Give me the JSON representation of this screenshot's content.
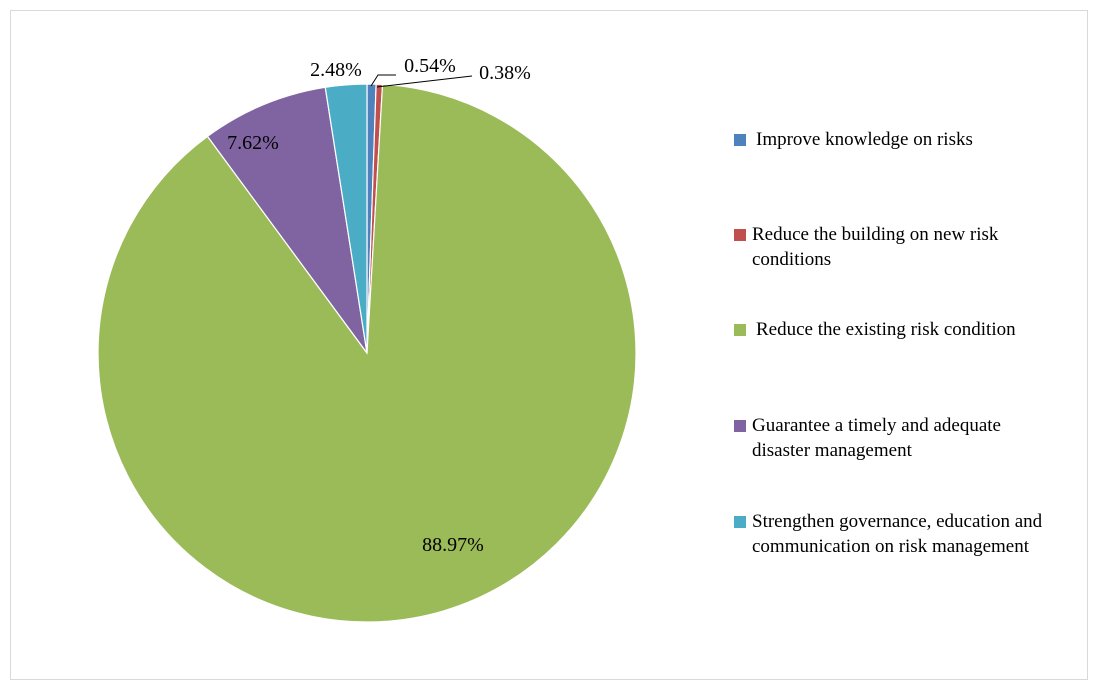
{
  "chart_data": {
    "type": "pie",
    "title": "",
    "legend_position": "right",
    "slices": [
      {
        "label": "Improve knowledge on risks",
        "value": 0.54,
        "display": "0.54%",
        "color": "#4f81bd"
      },
      {
        "label": "Reduce the building on new risk conditions",
        "value": 0.38,
        "display": "0.38%",
        "color": "#c0504d"
      },
      {
        "label": "Reduce the existing risk condition",
        "value": 88.97,
        "display": "88.97%",
        "color": "#9bbb59"
      },
      {
        "label": "Guarantee a timely and adequate disaster management",
        "value": 7.62,
        "display": "7.62%",
        "color": "#8064a2"
      },
      {
        "label": "Strengthen governance, education and communication on risk management",
        "value": 2.48,
        "display": "2.48%",
        "color": "#4bacc6"
      }
    ]
  }
}
